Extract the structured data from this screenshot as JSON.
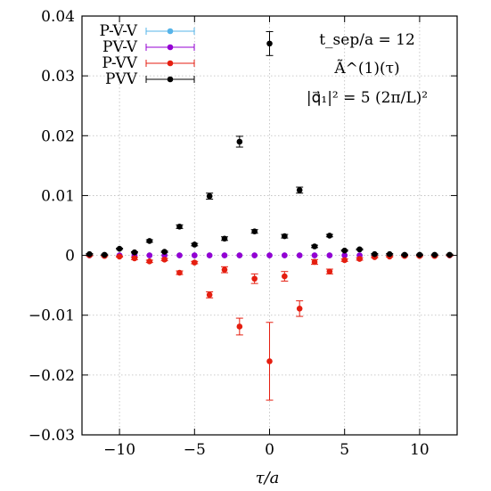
{
  "chart_data": {
    "type": "scatter",
    "xlabel": "τ/a",
    "ylabel": "",
    "xlim": [
      -12.5,
      12.5
    ],
    "ylim": [
      -0.03,
      0.04
    ],
    "xticks": [
      -10,
      -5,
      0,
      5,
      10
    ],
    "xtick_labels": [
      "−10",
      "−5",
      "0",
      "5",
      "10"
    ],
    "yticks": [
      -0.03,
      -0.02,
      -0.01,
      0,
      0.01,
      0.02,
      0.03,
      0.04
    ],
    "ytick_labels": [
      "−0.03",
      "−0.02",
      "−0.01",
      "0",
      "0.01",
      "0.02",
      "0.03",
      "0.04"
    ],
    "grid": true,
    "legend_position": "top-left",
    "annotations": [
      "t_sep/a = 12",
      "Ã^(1)(τ)",
      "|q⃗₁|² = 5 (2π/L)²"
    ],
    "series": [
      {
        "name": "P-V-V",
        "color": "#56b4e9",
        "x": [
          -12,
          -11,
          -10,
          -9,
          -8,
          -7,
          -6,
          -5,
          -4,
          -3,
          -2,
          -1,
          0,
          1,
          2,
          3,
          4,
          5,
          6,
          7,
          8,
          9,
          10,
          11,
          12
        ],
        "y": [
          0,
          0,
          0,
          0,
          0,
          0,
          0,
          0,
          0,
          0,
          0,
          0,
          0,
          0,
          0,
          0,
          0,
          0,
          0,
          0,
          0,
          0,
          0,
          0,
          0
        ],
        "err": [
          0,
          0,
          0,
          0,
          0,
          0,
          0,
          0,
          0,
          0,
          0,
          0,
          0,
          0,
          0,
          0,
          0,
          0,
          0,
          0,
          0,
          0,
          0,
          0,
          0
        ]
      },
      {
        "name": "PV-V",
        "color": "#9400d3",
        "x": [
          -12,
          -11,
          -10,
          -9,
          -8,
          -7,
          -6,
          -5,
          -4,
          -3,
          -2,
          -1,
          0,
          1,
          2,
          3,
          4,
          5,
          6,
          7,
          8,
          9,
          10,
          11,
          12
        ],
        "y": [
          0,
          0,
          0,
          0,
          0,
          0,
          0,
          0,
          0,
          0,
          0,
          0,
          0,
          0,
          0,
          0,
          0,
          0,
          0,
          0,
          0,
          0,
          0,
          0,
          0
        ],
        "err": [
          0,
          0,
          0,
          0,
          0,
          0,
          0,
          0,
          0,
          0,
          0,
          0,
          0,
          0,
          0,
          0,
          0,
          0,
          0,
          0,
          0,
          0,
          0,
          0,
          0
        ]
      },
      {
        "name": "P-VV",
        "color": "#e51e10",
        "x": [
          -12,
          -11,
          -10,
          -9,
          -8,
          -7,
          -6,
          -5,
          -4,
          -3,
          -2,
          -1,
          0,
          1,
          2,
          3,
          4,
          5,
          6,
          7,
          8,
          9,
          10,
          11,
          12
        ],
        "y": [
          0,
          -0.0001,
          -0.0002,
          -0.0005,
          -0.001,
          -0.0007,
          -0.0029,
          -0.0012,
          -0.0066,
          -0.0024,
          -0.0119,
          -0.0039,
          -0.0177,
          -0.0035,
          -0.0089,
          -0.0011,
          -0.0027,
          -0.0008,
          -0.0006,
          -0.0003,
          -0.0002,
          -0.0001,
          -0.0001,
          -0.0001,
          0
        ],
        "err": [
          0.0001,
          0.0001,
          0.0001,
          0.0002,
          0.0002,
          0.0002,
          0.0003,
          0.0002,
          0.0005,
          0.0005,
          0.0014,
          0.0008,
          0.0065,
          0.0008,
          0.0013,
          0.0004,
          0.0004,
          0.0002,
          0.0002,
          0.0001,
          0.0001,
          0.0001,
          0.0001,
          0.0001,
          0.0001
        ]
      },
      {
        "name": "PVV",
        "color": "#000000",
        "x": [
          -12,
          -11,
          -10,
          -9,
          -8,
          -7,
          -6,
          -5,
          -4,
          -3,
          -2,
          -1,
          0,
          1,
          2,
          3,
          4,
          5,
          6,
          7,
          8,
          9,
          10,
          11,
          12
        ],
        "y": [
          0.0002,
          0.0001,
          0.0011,
          0.0005,
          0.0024,
          0.0006,
          0.0048,
          0.0018,
          0.0099,
          0.0028,
          0.019,
          0.004,
          0.0354,
          0.0032,
          0.0109,
          0.0015,
          0.0033,
          0.0008,
          0.001,
          0.0002,
          0.0002,
          0.0001,
          0.0001,
          0.0001,
          0.0001
        ],
        "err": [
          0.0001,
          0.0001,
          0.0001,
          0.0001,
          0.0002,
          0.0001,
          0.0003,
          0.0002,
          0.0005,
          0.0003,
          0.0009,
          0.0003,
          0.002,
          0.0003,
          0.0005,
          0.0002,
          0.0002,
          0.0001,
          0.0001,
          0.0001,
          0.0001,
          0.0001,
          0.0001,
          0.0001,
          0.0001
        ]
      }
    ]
  }
}
